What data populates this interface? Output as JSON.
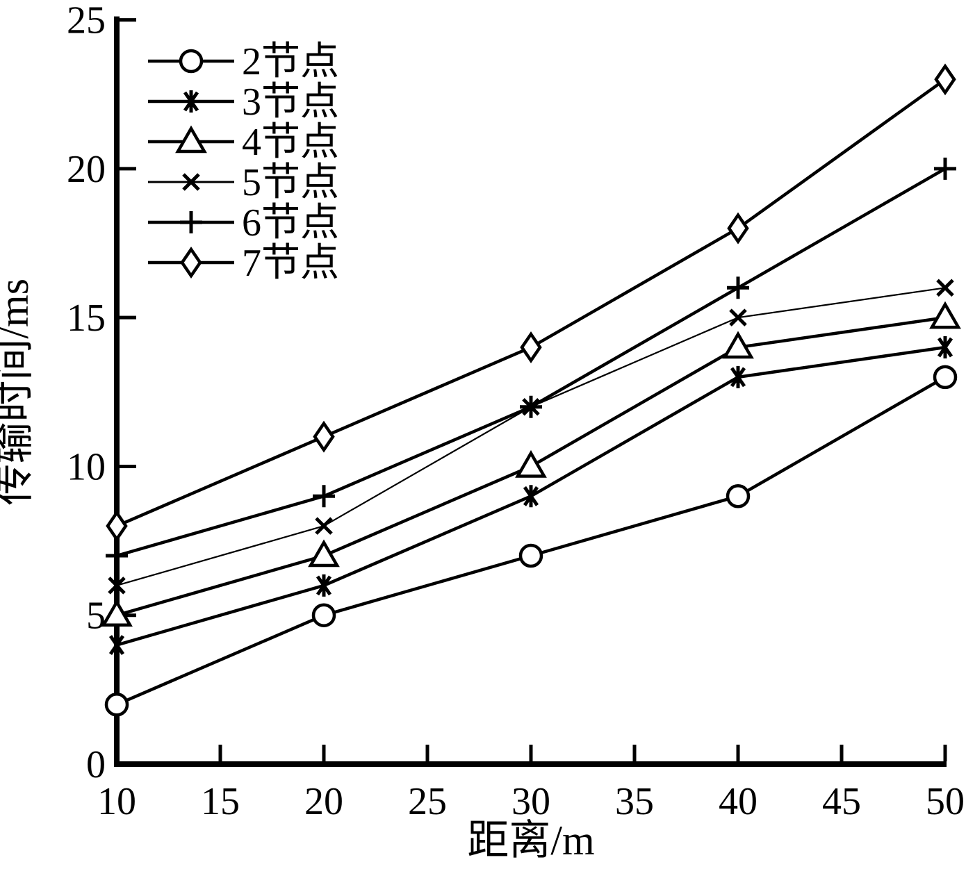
{
  "chart_data": {
    "type": "line",
    "title": "",
    "xlabel": "距离/m",
    "ylabel": "传输时间/ms",
    "xlim": [
      10,
      50
    ],
    "ylim": [
      0,
      25
    ],
    "xticks": [
      10,
      15,
      20,
      25,
      30,
      35,
      40,
      45,
      50
    ],
    "yticks": [
      0,
      5,
      10,
      15,
      20,
      25
    ],
    "grid": false,
    "legend_position": "top-left-inside",
    "line_color": "#000000",
    "background_color": "#ffffff",
    "x": [
      10,
      20,
      30,
      40,
      50
    ],
    "series": [
      {
        "name": "2节点",
        "marker": "circle",
        "line_width": 4.5,
        "values": [
          2,
          5,
          7,
          9,
          13
        ]
      },
      {
        "name": "3节点",
        "marker": "asterisk",
        "line_width": 4.5,
        "values": [
          4,
          6,
          9,
          13,
          14
        ]
      },
      {
        "name": "4节点",
        "marker": "triangle",
        "line_width": 4.5,
        "values": [
          5,
          7,
          10,
          14,
          15
        ]
      },
      {
        "name": "5节点",
        "marker": "x",
        "line_width": 2.2,
        "values": [
          6,
          8,
          12,
          15,
          16
        ]
      },
      {
        "name": "6节点",
        "marker": "plus",
        "line_width": 4.5,
        "values": [
          7,
          9,
          12,
          16,
          20
        ]
      },
      {
        "name": "7节点",
        "marker": "diamond",
        "line_width": 4.5,
        "values": [
          8,
          11,
          14,
          18,
          23
        ]
      }
    ]
  }
}
